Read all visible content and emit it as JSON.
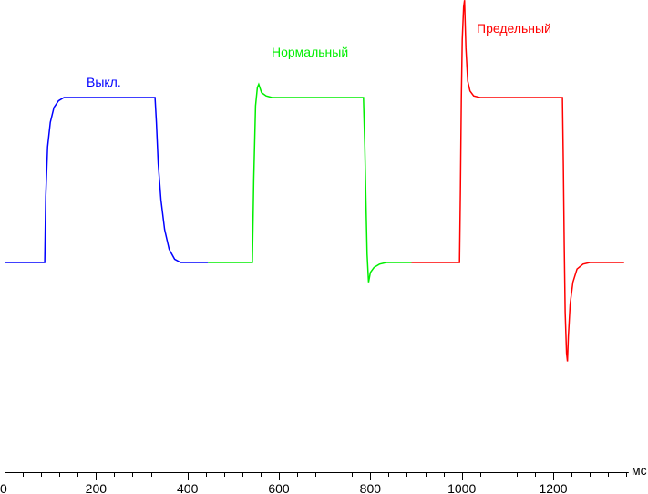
{
  "chart_data": {
    "type": "line",
    "title": "",
    "xlabel": "мс",
    "ylabel": "",
    "xlim": [
      0,
      1365
    ],
    "ylim": [
      -60,
      160
    ],
    "grid": false,
    "x_ticks": [
      0,
      200,
      400,
      600,
      800,
      1000,
      1200
    ],
    "x_tick_labels": [
      "0",
      "200",
      "400",
      "600",
      "800",
      "1000",
      "1200"
    ],
    "minor_tick_step": 40,
    "series": [
      {
        "name": "Выкл.",
        "color": "#0000ff",
        "points": [
          [
            0,
            0
          ],
          [
            88,
            0
          ],
          [
            90,
            40
          ],
          [
            94,
            70
          ],
          [
            100,
            85
          ],
          [
            108,
            94
          ],
          [
            118,
            98
          ],
          [
            130,
            100
          ],
          [
            329,
            100
          ],
          [
            332,
            85
          ],
          [
            336,
            60
          ],
          [
            342,
            38
          ],
          [
            350,
            20
          ],
          [
            360,
            8
          ],
          [
            372,
            2
          ],
          [
            385,
            0
          ],
          [
            445,
            0
          ]
        ]
      },
      {
        "name": "Нормальный",
        "color": "#00ee00",
        "points": [
          [
            445,
            0
          ],
          [
            542,
            0
          ],
          [
            545,
            50
          ],
          [
            549,
            95
          ],
          [
            553,
            106
          ],
          [
            556,
            108
          ],
          [
            562,
            103
          ],
          [
            572,
            101
          ],
          [
            585,
            100
          ],
          [
            785,
            100
          ],
          [
            788,
            70
          ],
          [
            791,
            30
          ],
          [
            793,
            5
          ],
          [
            796,
            -12
          ],
          [
            800,
            -6
          ],
          [
            808,
            -3
          ],
          [
            820,
            -1
          ],
          [
            835,
            0
          ],
          [
            890,
            0
          ]
        ]
      },
      {
        "name": "Предельный",
        "color": "#ff0000",
        "points": [
          [
            890,
            0
          ],
          [
            995,
            0
          ],
          [
            997,
            45
          ],
          [
            999,
            100
          ],
          [
            1001,
            135
          ],
          [
            1004,
            155
          ],
          [
            1006,
            159
          ],
          [
            1009,
            130
          ],
          [
            1013,
            110
          ],
          [
            1018,
            104
          ],
          [
            1026,
            101
          ],
          [
            1040,
            100
          ],
          [
            1220,
            100
          ],
          [
            1222,
            60
          ],
          [
            1224,
            10
          ],
          [
            1226,
            -30
          ],
          [
            1229,
            -55
          ],
          [
            1231,
            -60
          ],
          [
            1233,
            -45
          ],
          [
            1237,
            -25
          ],
          [
            1243,
            -12
          ],
          [
            1252,
            -4
          ],
          [
            1265,
            -1
          ],
          [
            1280,
            0
          ],
          [
            1355,
            0
          ]
        ]
      }
    ]
  }
}
